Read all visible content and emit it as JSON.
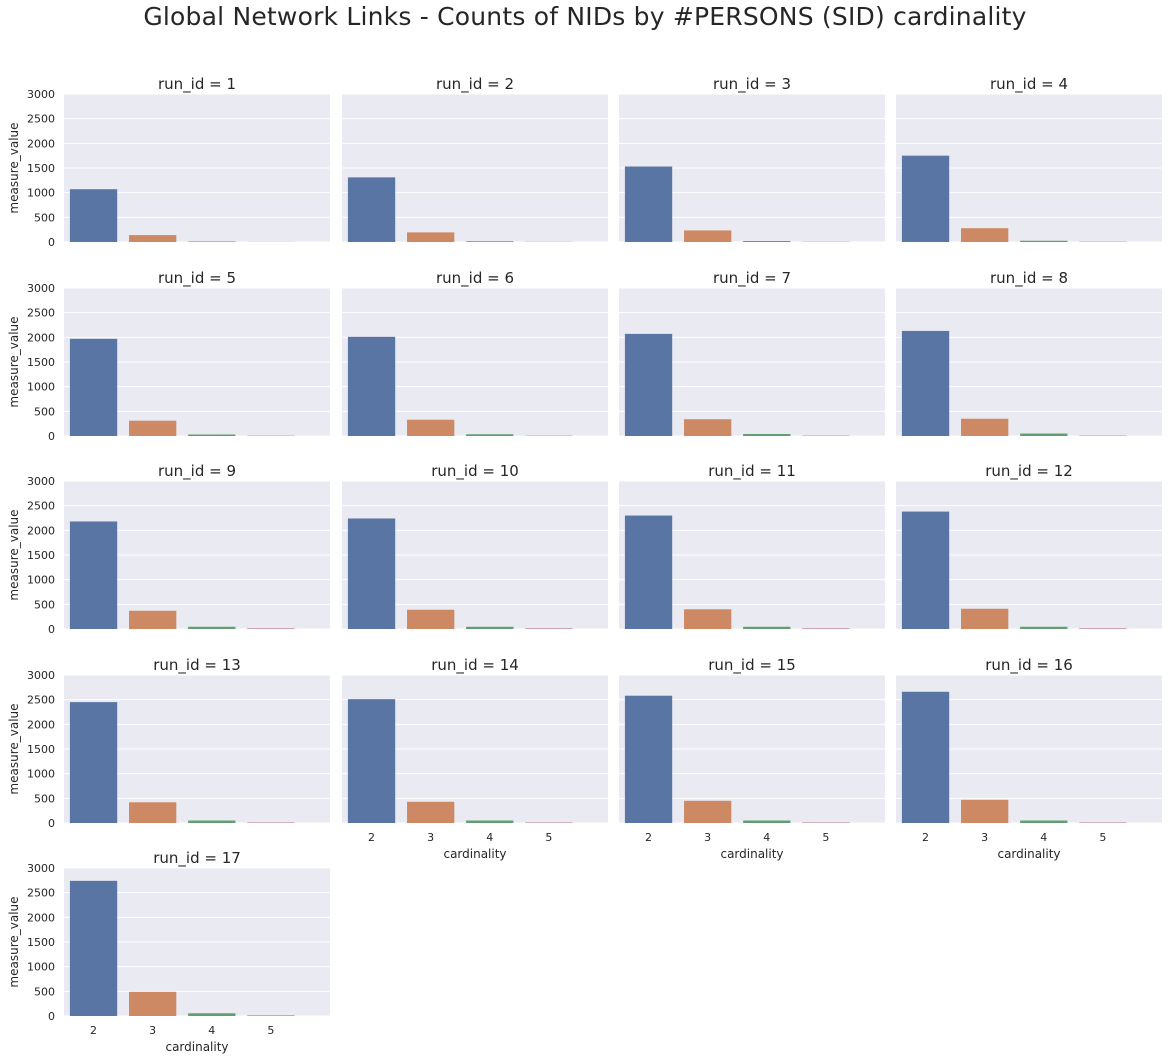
{
  "title": "Global Network Links - Counts of NIDs by #PERSONS (SID) cardinality",
  "colors": {
    "panel_bg": "#eaeaf2",
    "grid": "#ffffff",
    "cardinality_2": "#5875a4",
    "cardinality_3": "#cc8963",
    "cardinality_4": "#5f9e6e",
    "cardinality_5": "#b55d60"
  },
  "chart_data": {
    "type": "bar",
    "facet_column": "run_id",
    "facet_title_format": "run_id = {}",
    "xlabel": "cardinality",
    "ylabel": "measure_value",
    "categories": [
      "2",
      "3",
      "4",
      "5"
    ],
    "ylim": [
      0,
      3000
    ],
    "yticks": [
      0,
      500,
      1000,
      1500,
      2000,
      2500,
      3000
    ],
    "grid": true,
    "panels": [
      {
        "run_id": "1",
        "title": "run_id = 1",
        "values": [
          1070,
          140,
          10,
          2
        ]
      },
      {
        "run_id": "2",
        "title": "run_id = 2",
        "values": [
          1310,
          195,
          15,
          3
        ]
      },
      {
        "run_id": "3",
        "title": "run_id = 3",
        "values": [
          1530,
          235,
          20,
          4
        ]
      },
      {
        "run_id": "4",
        "title": "run_id = 4",
        "values": [
          1750,
          280,
          25,
          5
        ]
      },
      {
        "run_id": "5",
        "title": "run_id = 5",
        "values": [
          1970,
          310,
          30,
          5
        ]
      },
      {
        "run_id": "6",
        "title": "run_id = 6",
        "values": [
          2010,
          330,
          35,
          5
        ]
      },
      {
        "run_id": "7",
        "title": "run_id = 7",
        "values": [
          2070,
          340,
          40,
          6
        ]
      },
      {
        "run_id": "8",
        "title": "run_id = 8",
        "values": [
          2130,
          350,
          50,
          6
        ]
      },
      {
        "run_id": "9",
        "title": "run_id = 9",
        "values": [
          2180,
          370,
          45,
          10
        ]
      },
      {
        "run_id": "10",
        "title": "run_id = 10",
        "values": [
          2240,
          390,
          45,
          10
        ]
      },
      {
        "run_id": "11",
        "title": "run_id = 11",
        "values": [
          2300,
          400,
          45,
          10
        ]
      },
      {
        "run_id": "12",
        "title": "run_id = 12",
        "values": [
          2380,
          410,
          45,
          10
        ]
      },
      {
        "run_id": "13",
        "title": "run_id = 13",
        "values": [
          2450,
          420,
          50,
          8
        ]
      },
      {
        "run_id": "14",
        "title": "run_id = 14",
        "values": [
          2510,
          430,
          50,
          8
        ]
      },
      {
        "run_id": "15",
        "title": "run_id = 15",
        "values": [
          2580,
          450,
          50,
          8
        ]
      },
      {
        "run_id": "16",
        "title": "run_id = 16",
        "values": [
          2660,
          470,
          50,
          8
        ]
      },
      {
        "run_id": "17",
        "title": "run_id = 17",
        "values": [
          2740,
          490,
          55,
          10
        ]
      }
    ]
  }
}
